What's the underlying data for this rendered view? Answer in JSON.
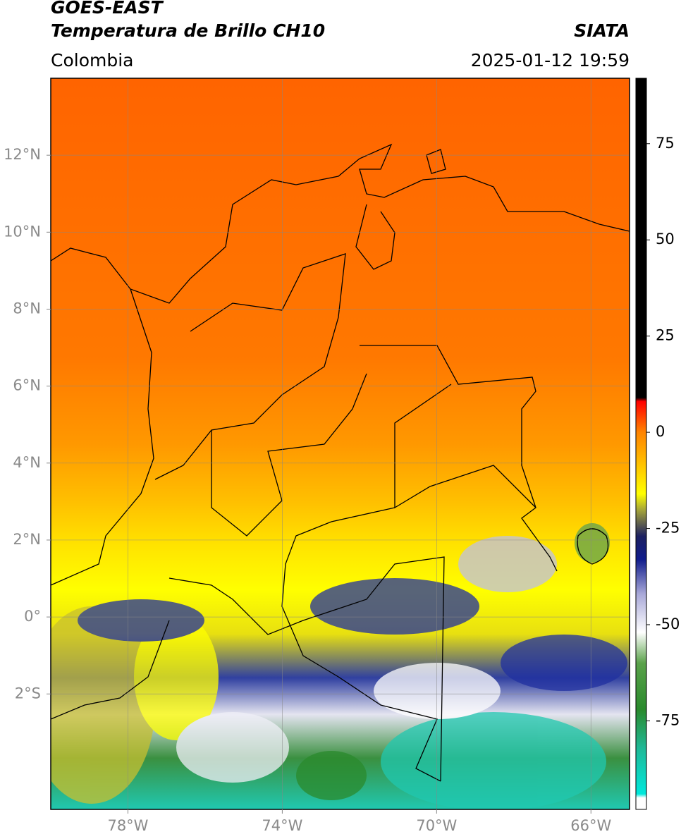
{
  "header": {
    "title": "GOES-EAST",
    "subtitle": "Temperatura de Brillo CH10",
    "source": "SIATA",
    "region": "Colombia",
    "datetime": "2025-01-12 19:59"
  },
  "map": {
    "lonlim": [
      -80,
      -65
    ],
    "latlim": [
      -5,
      14
    ],
    "grid": true,
    "lonticks": [
      {
        "value": -78,
        "label": "78°W"
      },
      {
        "value": -74,
        "label": "74°W"
      },
      {
        "value": -70,
        "label": "70°W"
      },
      {
        "value": -66,
        "label": "66°W"
      }
    ],
    "latticks": [
      {
        "value": 12,
        "label": "12°N"
      },
      {
        "value": 10,
        "label": "10°N"
      },
      {
        "value": 8,
        "label": "8°N"
      },
      {
        "value": 6,
        "label": "6°N"
      },
      {
        "value": 4,
        "label": "4°N"
      },
      {
        "value": 2,
        "label": "2°N"
      },
      {
        "value": 0,
        "label": "0°"
      },
      {
        "value": -2,
        "label": "2°S"
      }
    ]
  },
  "colorbar": {
    "lim": [
      -98,
      92
    ],
    "ticks": [
      75,
      50,
      25,
      0,
      -25,
      -50,
      -75
    ],
    "stops": [
      {
        "value": -98,
        "color": "#ffffff"
      },
      {
        "value": -95,
        "color": "#ffffff"
      },
      {
        "value": -94,
        "color": "#00e8dc"
      },
      {
        "value": -82,
        "color": "#1fb896"
      },
      {
        "value": -72,
        "color": "#2a8a2c"
      },
      {
        "value": -60,
        "color": "#5aa24a"
      },
      {
        "value": -52,
        "color": "#ffffff"
      },
      {
        "value": -42,
        "color": "#a8a8d8"
      },
      {
        "value": -33,
        "color": "#101c8c"
      },
      {
        "value": -27,
        "color": "#1c2060"
      },
      {
        "value": -24,
        "color": "#5a5a50"
      },
      {
        "value": -20,
        "color": "#a8a838"
      },
      {
        "value": -16,
        "color": "#ffff00"
      },
      {
        "value": -6,
        "color": "#ffb000"
      },
      {
        "value": 0,
        "color": "#ff8400"
      },
      {
        "value": 8,
        "color": "#ff0000"
      },
      {
        "value": 9,
        "color": "#000000"
      },
      {
        "value": 92,
        "color": "#000000"
      }
    ]
  }
}
